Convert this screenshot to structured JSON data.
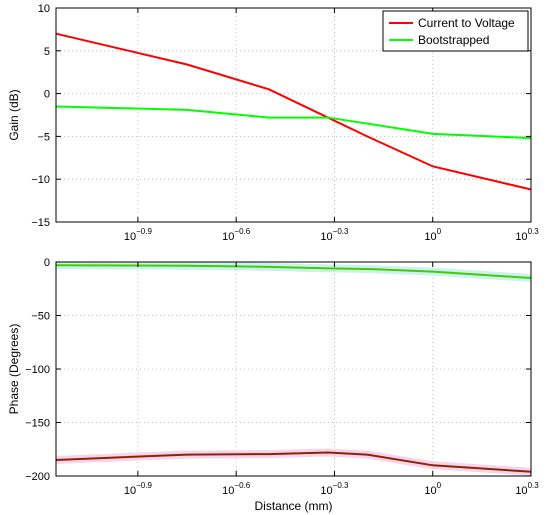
{
  "chart_data": [
    {
      "type": "line",
      "ylabel": "Gain (dB)",
      "xlabel": "",
      "x_scale": "log10",
      "xlim": [
        0.0707946,
        1.9952623
      ],
      "ylim": [
        -15,
        10
      ],
      "grid": true,
      "legend": "top-right",
      "x_ticks": [
        {
          "value": 0.1258925,
          "base": "10",
          "exp": "−0.9"
        },
        {
          "value": 0.2511886,
          "base": "10",
          "exp": "−0.6"
        },
        {
          "value": 0.5011872,
          "base": "10",
          "exp": "−0.3"
        },
        {
          "value": 1.0,
          "base": "10",
          "exp": "0"
        },
        {
          "value": 1.9952623,
          "base": "10",
          "exp": "0.3"
        }
      ],
      "y_ticks": [
        "10",
        "5",
        "0",
        "−5",
        "−10",
        "−15"
      ],
      "y_tick_values": [
        10,
        5,
        0,
        -5,
        -10,
        -15
      ],
      "x": [
        0.0707946,
        0.1778279,
        0.3162278,
        0.4786301,
        0.6309573,
        1.0,
        1.9952623
      ],
      "series": [
        {
          "name": "Current to Voltage",
          "color": "#ff0000",
          "values": [
            7.0,
            3.4,
            0.5,
            -2.8,
            -5.0,
            -8.5,
            -11.2
          ]
        },
        {
          "name": "Bootstrapped",
          "color": "#00ff00",
          "values": [
            -1.5,
            -1.9,
            -2.8,
            -2.8,
            -3.5,
            -4.7,
            -5.2
          ]
        }
      ]
    },
    {
      "type": "line",
      "ylabel": "Phase (Degrees)",
      "xlabel": "Distance (mm)",
      "x_scale": "log10",
      "xlim": [
        0.0707946,
        1.9952623
      ],
      "ylim": [
        -200,
        0
      ],
      "grid": true,
      "x_ticks": [
        {
          "value": 0.1258925,
          "base": "10",
          "exp": "−0.9"
        },
        {
          "value": 0.2511886,
          "base": "10",
          "exp": "−0.6"
        },
        {
          "value": 0.5011872,
          "base": "10",
          "exp": "−0.3"
        },
        {
          "value": 1.0,
          "base": "10",
          "exp": "0"
        },
        {
          "value": 1.9952623,
          "base": "10",
          "exp": "0.3"
        }
      ],
      "y_ticks": [
        "0",
        "−50",
        "−100",
        "−150",
        "−200"
      ],
      "y_tick_values": [
        0,
        -50,
        -100,
        -150,
        -200
      ],
      "x": [
        0.0707946,
        0.1778279,
        0.3162278,
        0.4786301,
        0.6309573,
        1.0,
        1.9952623
      ],
      "series": [
        {
          "name": "",
          "color": "#44cc00",
          "band_color": "#bfeeee",
          "values": [
            -3,
            -3.5,
            -4.5,
            -6,
            -6.5,
            -9,
            -15
          ]
        },
        {
          "name": "",
          "color": "#8b2500",
          "band_color": "#f5c9e6",
          "values": [
            -185,
            -180,
            -179.5,
            -178,
            -180,
            -190,
            -196
          ]
        }
      ]
    }
  ]
}
